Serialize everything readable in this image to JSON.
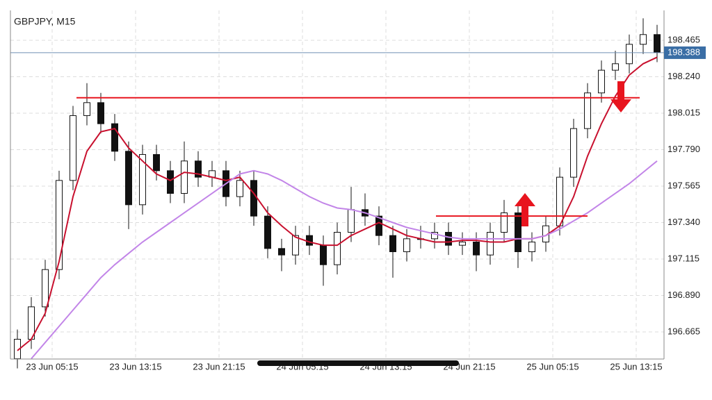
{
  "chart_data": {
    "type": "candlestick",
    "title": "GBPJPY, M15",
    "open": [
      196.5,
      196.62,
      196.82,
      197.05,
      197.6,
      198.0,
      198.08,
      197.95,
      197.78,
      197.45,
      197.76,
      197.66,
      197.52,
      197.72,
      197.62,
      197.66,
      197.5,
      197.6,
      197.38,
      197.18,
      197.14,
      197.26,
      197.2,
      197.08,
      197.28,
      197.42,
      197.38,
      197.26,
      197.16,
      197.24,
      197.24,
      197.28,
      197.2,
      197.22,
      197.14,
      197.28,
      197.4,
      197.16,
      197.22,
      197.32,
      197.62,
      197.92,
      198.14,
      198.28,
      198.32,
      198.44,
      198.5
    ],
    "high": [
      196.68,
      196.88,
      197.11,
      197.66,
      198.06,
      198.2,
      198.14,
      198.01,
      197.84,
      197.82,
      197.82,
      197.72,
      197.84,
      197.78,
      197.72,
      197.72,
      197.66,
      197.66,
      197.44,
      197.24,
      197.32,
      197.32,
      197.26,
      197.34,
      197.56,
      197.52,
      197.44,
      197.32,
      197.3,
      197.32,
      197.34,
      197.34,
      197.28,
      197.28,
      197.34,
      197.48,
      197.46,
      197.28,
      197.38,
      197.68,
      197.98,
      198.2,
      198.34,
      198.4,
      198.5,
      198.6,
      198.56
    ],
    "low": [
      196.44,
      196.56,
      196.76,
      196.99,
      197.54,
      197.94,
      197.89,
      197.72,
      197.3,
      197.39,
      197.6,
      197.46,
      197.46,
      197.56,
      197.56,
      197.44,
      197.44,
      197.32,
      197.12,
      197.04,
      197.08,
      197.14,
      196.95,
      197.02,
      197.22,
      197.32,
      197.2,
      197.0,
      197.1,
      197.18,
      197.18,
      197.14,
      197.14,
      197.04,
      197.08,
      197.22,
      197.06,
      197.1,
      197.16,
      197.26,
      197.56,
      197.86,
      198.08,
      198.22,
      198.26,
      198.38,
      198.33
    ],
    "close": [
      196.62,
      196.82,
      197.05,
      197.6,
      198.0,
      198.08,
      197.95,
      197.78,
      197.45,
      197.76,
      197.66,
      197.52,
      197.72,
      197.62,
      197.66,
      197.5,
      197.6,
      197.38,
      197.18,
      197.14,
      197.26,
      197.2,
      197.08,
      197.28,
      197.42,
      197.38,
      197.26,
      197.16,
      197.24,
      197.24,
      197.28,
      197.2,
      197.22,
      197.14,
      197.28,
      197.4,
      197.16,
      197.22,
      197.32,
      197.62,
      197.92,
      198.14,
      198.28,
      198.32,
      198.44,
      198.5,
      198.39
    ],
    "overlays": [
      {
        "color": "#c8102e",
        "values": [
          196.55,
          196.62,
          196.78,
          197.1,
          197.5,
          197.78,
          197.9,
          197.92,
          197.8,
          197.72,
          197.64,
          197.6,
          197.65,
          197.64,
          197.62,
          197.6,
          197.62,
          197.52,
          197.4,
          197.32,
          197.25,
          197.22,
          197.2,
          197.2,
          197.26,
          197.3,
          197.34,
          197.3,
          197.26,
          197.24,
          197.22,
          197.22,
          197.23,
          197.23,
          197.22,
          197.22,
          197.24,
          197.24,
          197.26,
          197.32,
          197.5,
          197.75,
          197.95,
          198.12,
          198.25,
          198.32,
          198.36
        ]
      },
      {
        "color": "#c285e8",
        "values": [
          null,
          196.5,
          196.6,
          196.7,
          196.8,
          196.9,
          197.0,
          197.08,
          197.15,
          197.22,
          197.28,
          197.34,
          197.4,
          197.46,
          197.52,
          197.58,
          197.64,
          197.66,
          197.64,
          197.6,
          197.55,
          197.5,
          197.46,
          197.43,
          197.42,
          197.4,
          197.37,
          197.34,
          197.31,
          197.29,
          197.27,
          197.25,
          197.24,
          197.24,
          197.24,
          197.24,
          197.24,
          197.24,
          197.26,
          197.3,
          197.35,
          197.4,
          197.46,
          197.52,
          197.58,
          197.65,
          197.72
        ]
      }
    ],
    "levels": [
      {
        "value": 198.11,
        "x": [
          4.25,
          44.75
        ],
        "color": "#e8141e"
      },
      {
        "value": 197.38,
        "x": [
          30.1,
          41.0
        ],
        "color": "#e8141e"
      }
    ],
    "last_price": 198.388,
    "xlim": [
      -0.5,
      46.5
    ],
    "xticks": [
      {
        "value": 2.5,
        "label": "23 Jun 05:15"
      },
      {
        "value": 8.5,
        "label": "23 Jun 13:15"
      },
      {
        "value": 14.5,
        "label": "23 Jun 21:15"
      },
      {
        "value": 20.5,
        "label": "24 Jun 05:15"
      },
      {
        "value": 26.5,
        "label": "24 Jun 13:15"
      },
      {
        "value": 32.5,
        "label": "24 Jun 21:15"
      },
      {
        "value": 38.5,
        "label": "25 Jun 05:15"
      },
      {
        "value": 44.5,
        "label": "25 Jun 13:15"
      }
    ],
    "ylim": [
      196.498,
      198.649
    ],
    "yticks": [
      196.665,
      {
        "value": 196.89,
        "label": "196.890"
      },
      197.115,
      {
        "value": 197.34,
        "label": "197.340"
      },
      197.565,
      {
        "value": 197.79,
        "label": "197.790"
      },
      198.015,
      {
        "value": 198.24,
        "label": "198.240"
      },
      198.465
    ],
    "grid": true
  }
}
